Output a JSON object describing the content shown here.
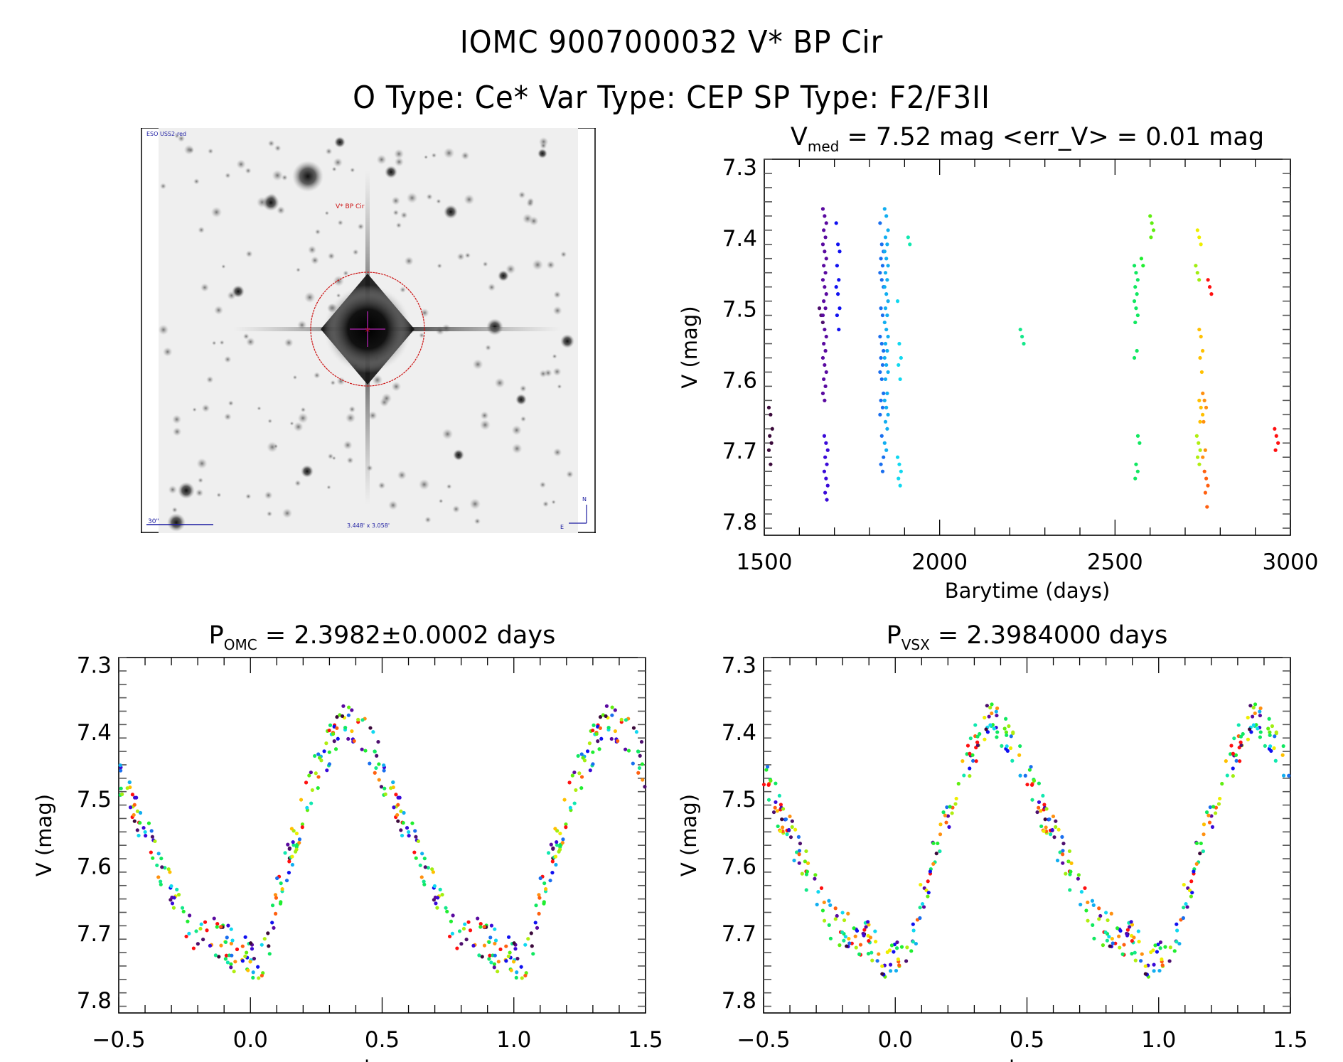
{
  "header": {
    "title_line1": "IOMC 9007000032    V* BP Cir",
    "title_line2": "O Type: Ce*   Var Type: CEP   SP Type: F2/F3II"
  },
  "finder_chart": {
    "survey_label": "ESO USS2-red",
    "target_label": "V* BP Cir",
    "scale_bar_label": "30\"",
    "field_size_label": "3.448' x 3.058'",
    "compass_north": "N",
    "compass_east": "E",
    "background_color": "#f4f4f4",
    "circle_color": "#cc1111",
    "label_color_blue": "#1a1aa0",
    "label_color_red": "#cc1111",
    "crosshair_color": "#9b1f9b"
  },
  "chart_data": [
    {
      "id": "lightcurve-time",
      "type": "scatter",
      "title_main": "V",
      "title_sub": "med",
      "title_rest": " = 7.52 mag <err_V> = 0.01 mag",
      "xlabel": "Barytime (days)",
      "ylabel": "V (mag)",
      "xlim": [
        1500,
        3000
      ],
      "ylim": [
        7.29,
        7.82
      ],
      "y_inverted": true,
      "xticks": [
        1500,
        2000,
        2500,
        3000
      ],
      "xtick_labels": [
        "1500",
        "2000",
        "2500",
        "3000"
      ],
      "yticks": [
        7.3,
        7.4,
        7.5,
        7.6,
        7.7,
        7.8
      ],
      "ytick_labels": [
        "7.3",
        "7.4",
        "7.5",
        "7.6",
        "7.7",
        "7.8"
      ],
      "grid": false,
      "color_encoding": "rainbow by observing time",
      "groups": [
        {
          "t": 1518,
          "mags": [
            7.64,
            7.65,
            7.67,
            7.68,
            7.69,
            7.7,
            7.72
          ],
          "color": "#3b0a3b"
        },
        {
          "t": 1662,
          "mags": [
            7.5,
            7.51,
            7.52
          ],
          "color": "#4d0f6e"
        },
        {
          "t": 1672,
          "mags": [
            7.36,
            7.37,
            7.38,
            7.39,
            7.4,
            7.41,
            7.42,
            7.43,
            7.44,
            7.45,
            7.46,
            7.47,
            7.48,
            7.49,
            7.5,
            7.51,
            7.53,
            7.54,
            7.55,
            7.56,
            7.57,
            7.58,
            7.59,
            7.6,
            7.61,
            7.62,
            7.63
          ],
          "color": "#5a0aa0"
        },
        {
          "t": 1676,
          "mags": [
            7.68,
            7.69,
            7.7,
            7.71,
            7.72,
            7.73,
            7.74,
            7.75,
            7.76,
            7.77
          ],
          "color": "#3a0ad8"
        },
        {
          "t": 1710,
          "mags": [
            7.38,
            7.41,
            7.42,
            7.44,
            7.46,
            7.47,
            7.48,
            7.5,
            7.51,
            7.53
          ],
          "color": "#1010f0"
        },
        {
          "t": 1835,
          "mags": [
            7.38,
            7.41,
            7.42,
            7.43,
            7.44,
            7.45,
            7.46,
            7.47,
            7.5,
            7.51,
            7.54,
            7.55,
            7.56,
            7.57,
            7.58,
            7.59,
            7.6,
            7.62,
            7.63,
            7.64,
            7.65,
            7.68,
            7.71,
            7.72,
            7.73
          ],
          "color": "#1a6fef"
        },
        {
          "t": 1848,
          "mags": [
            7.36,
            7.37,
            7.39,
            7.4,
            7.41,
            7.42,
            7.43,
            7.44,
            7.45,
            7.46,
            7.47,
            7.48,
            7.49,
            7.5,
            7.51,
            7.52,
            7.53,
            7.54,
            7.55,
            7.56,
            7.57,
            7.58,
            7.59,
            7.6,
            7.62,
            7.63,
            7.64,
            7.65,
            7.66,
            7.67,
            7.69,
            7.7
          ],
          "color": "#12aef0"
        },
        {
          "t": 1885,
          "mags": [
            7.49,
            7.55,
            7.57,
            7.58,
            7.6,
            7.71,
            7.72,
            7.73,
            7.74,
            7.75
          ],
          "color": "#10d8f0"
        },
        {
          "t": 1915,
          "mags": [
            7.4,
            7.41
          ],
          "color": "#10e8b0"
        },
        {
          "t": 2235,
          "mags": [
            7.53,
            7.54,
            7.55
          ],
          "color": "#14e88a"
        },
        {
          "t": 2560,
          "mags": [
            7.44,
            7.45,
            7.46,
            7.47,
            7.48,
            7.49,
            7.5,
            7.51,
            7.52,
            7.56,
            7.57,
            7.72,
            7.73,
            7.74
          ],
          "color": "#10e860"
        },
        {
          "t": 2570,
          "mags": [
            7.68,
            7.69
          ],
          "color": "#10e860"
        },
        {
          "t": 2580,
          "mags": [
            7.43,
            7.44
          ],
          "color": "#20ee30"
        },
        {
          "t": 2605,
          "mags": [
            7.37,
            7.38,
            7.39,
            7.4
          ],
          "color": "#60ee10"
        },
        {
          "t": 2735,
          "mags": [
            7.44,
            7.45,
            7.46
          ],
          "color": "#a0ee10"
        },
        {
          "t": 2740,
          "mags": [
            7.39,
            7.4,
            7.41
          ],
          "color": "#eeee00"
        },
        {
          "t": 2745,
          "mags": [
            7.53,
            7.54,
            7.56,
            7.57,
            7.59,
            7.63,
            7.64,
            7.65,
            7.66
          ],
          "color": "#ffc000"
        },
        {
          "t": 2738,
          "mags": [
            7.68,
            7.69,
            7.7,
            7.71,
            7.72
          ],
          "color": "#b0ee10"
        },
        {
          "t": 2755,
          "mags": [
            7.62,
            7.63,
            7.64,
            7.66,
            7.7,
            7.71
          ],
          "color": "#ff9010"
        },
        {
          "t": 2760,
          "mags": [
            7.73,
            7.74,
            7.75,
            7.76,
            7.78
          ],
          "color": "#ff6010"
        },
        {
          "t": 2770,
          "mags": [
            7.46,
            7.47,
            7.48
          ],
          "color": "#ff1010"
        },
        {
          "t": 2960,
          "mags": [
            7.67,
            7.68,
            7.69,
            7.7
          ],
          "color": "#ff1010"
        }
      ]
    },
    {
      "id": "phase-omc",
      "type": "scatter",
      "title_main": "P",
      "title_sub": "OMC",
      "title_rest": " = 2.3982±0.0002 days",
      "xlabel": "phase",
      "ylabel": "V (mag)",
      "xlim": [
        -0.5,
        1.5
      ],
      "ylim": [
        7.29,
        7.82
      ],
      "y_inverted": true,
      "xticks": [
        -0.5,
        0.0,
        0.5,
        1.0,
        1.5
      ],
      "xtick_labels": [
        "−0.5",
        "0.0",
        "0.5",
        "1.0",
        "1.5"
      ],
      "yticks": [
        7.3,
        7.4,
        7.5,
        7.6,
        7.7,
        7.8
      ],
      "ytick_labels": [
        "7.3",
        "7.4",
        "7.5",
        "7.6",
        "7.7",
        "7.8"
      ],
      "grid": false,
      "period_days": 2.3982,
      "light_curve_points": [
        [
          0.0,
          7.73
        ],
        [
          0.02,
          7.75
        ],
        [
          0.05,
          7.73
        ],
        [
          0.07,
          7.71
        ],
        [
          0.1,
          7.65
        ],
        [
          0.12,
          7.63
        ],
        [
          0.15,
          7.58
        ],
        [
          0.18,
          7.55
        ],
        [
          0.2,
          7.52
        ],
        [
          0.22,
          7.49
        ],
        [
          0.25,
          7.46
        ],
        [
          0.28,
          7.44
        ],
        [
          0.3,
          7.42
        ],
        [
          0.33,
          7.4
        ],
        [
          0.36,
          7.38
        ],
        [
          0.39,
          7.39
        ],
        [
          0.42,
          7.4
        ],
        [
          0.45,
          7.42
        ],
        [
          0.48,
          7.44
        ],
        [
          0.5,
          7.46
        ],
        [
          0.53,
          7.49
        ],
        [
          0.56,
          7.52
        ],
        [
          0.59,
          7.55
        ],
        [
          0.62,
          7.57
        ],
        [
          0.65,
          7.6
        ],
        [
          0.68,
          7.62
        ],
        [
          0.71,
          7.65
        ],
        [
          0.74,
          7.67
        ],
        [
          0.77,
          7.69
        ],
        [
          0.8,
          7.7
        ],
        [
          0.84,
          7.7
        ],
        [
          0.88,
          7.71
        ],
        [
          0.92,
          7.72
        ],
        [
          0.96,
          7.74
        ]
      ]
    },
    {
      "id": "phase-vsx",
      "type": "scatter",
      "title_main": "P",
      "title_sub": "VSX",
      "title_rest": " = 2.3984000 days",
      "xlabel": "phase",
      "ylabel": "V (mag)",
      "xlim": [
        -0.5,
        1.5
      ],
      "ylim": [
        7.29,
        7.82
      ],
      "y_inverted": true,
      "xticks": [
        -0.5,
        0.0,
        0.5,
        1.0,
        1.5
      ],
      "xtick_labels": [
        "−0.5",
        "0.0",
        "0.5",
        "1.0",
        "1.5"
      ],
      "yticks": [
        7.3,
        7.4,
        7.5,
        7.6,
        7.7,
        7.8
      ],
      "ytick_labels": [
        "7.3",
        "7.4",
        "7.5",
        "7.6",
        "7.7",
        "7.8"
      ],
      "grid": false,
      "period_days": 2.3984
    }
  ]
}
